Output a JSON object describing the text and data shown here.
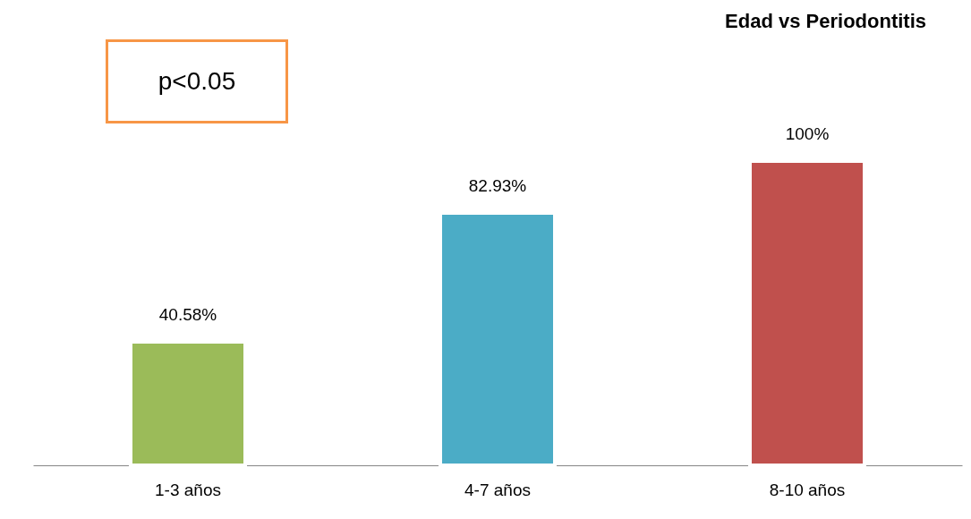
{
  "chart_data": {
    "type": "bar",
    "title": "Edad vs Periodontitis",
    "categories": [
      "1-3 años",
      "4-7 años",
      "8-10 años"
    ],
    "values": [
      40.58,
      82.93,
      100
    ],
    "colors": [
      "#9bbb59",
      "#4bacc6",
      "#c0504d"
    ],
    "value_labels": [
      "40.58%",
      "82.93%",
      "100%"
    ],
    "annotations": [
      "p<0.05"
    ]
  }
}
